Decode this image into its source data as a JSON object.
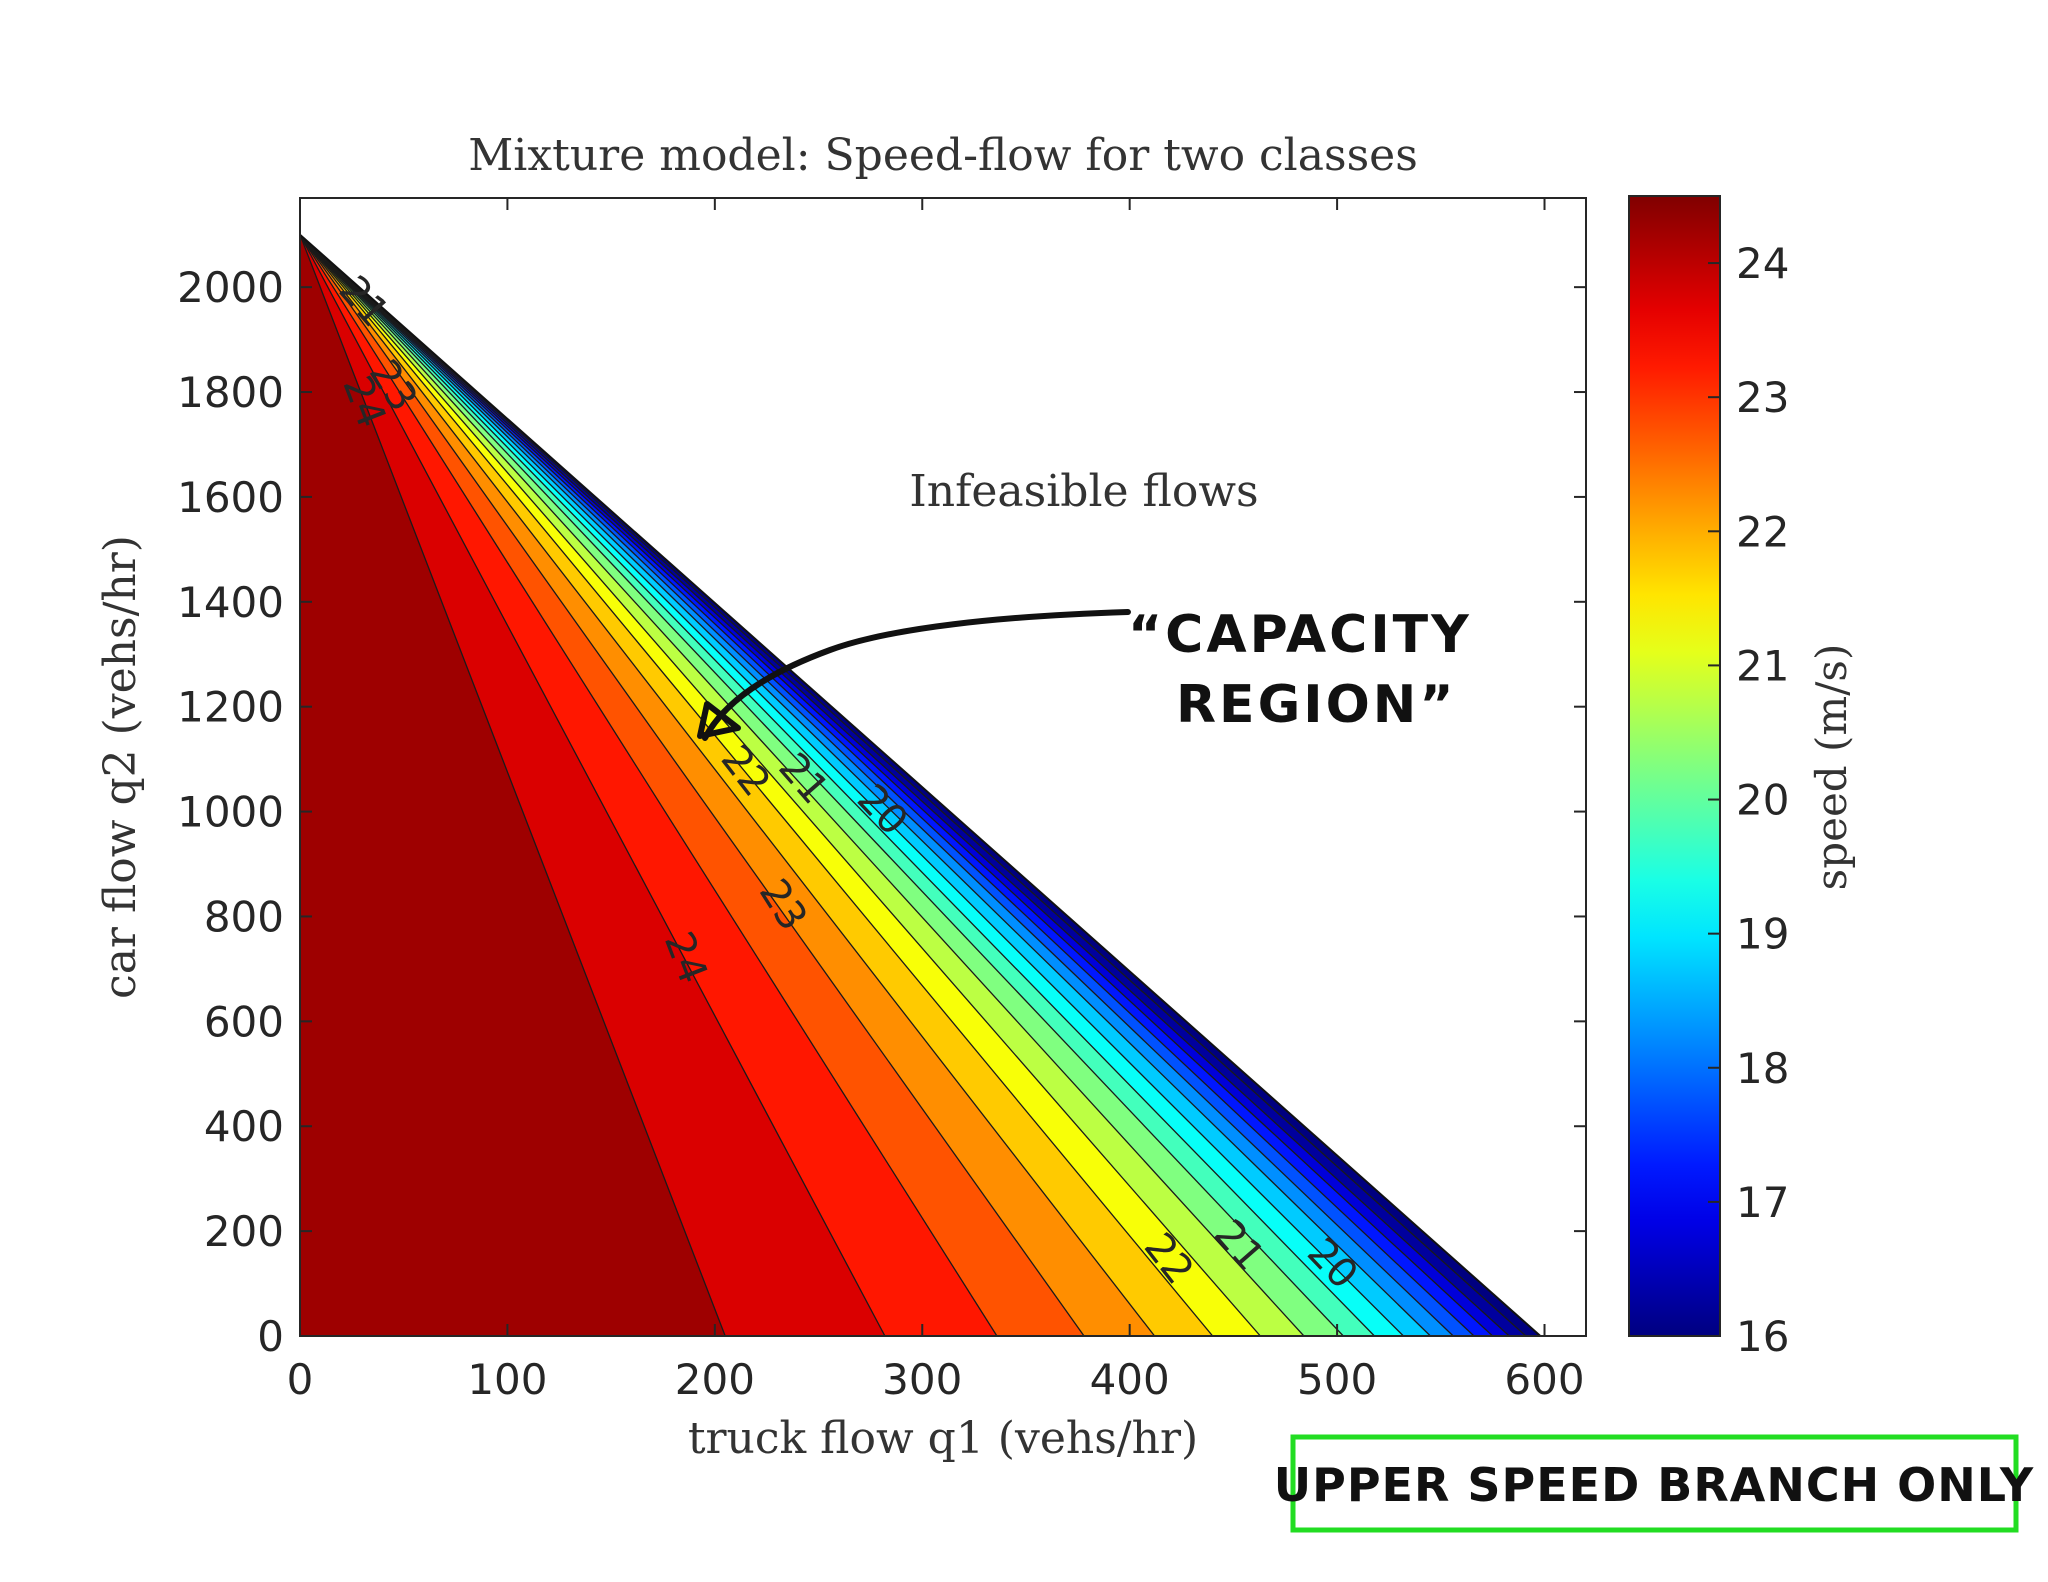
{
  "chart_data": {
    "type": "contour",
    "title": "Mixture model: Speed-flow for two classes",
    "xlabel": "truck flow q1 (vehs/hr)",
    "ylabel": "car flow q2 (vehs/hr)",
    "xlim": [
      0,
      620
    ],
    "ylim": [
      0,
      2170
    ],
    "xticks": [
      0,
      100,
      200,
      300,
      400,
      500,
      600
    ],
    "yticks": [
      0,
      200,
      400,
      600,
      800,
      1000,
      1200,
      1400,
      1600,
      1800,
      2000
    ],
    "colorbar": {
      "label": "speed (m/s)",
      "range": [
        16,
        24.5
      ],
      "ticks": [
        16,
        17,
        18,
        19,
        20,
        21,
        22,
        23,
        24
      ],
      "colormap": "jet"
    },
    "feasible_boundary": {
      "q1_intercept": 598,
      "q2_intercept": 2100
    },
    "contour_levels": [
      {
        "speed": 24.5,
        "q1_intercept": 0
      },
      {
        "speed": 24,
        "q1_intercept": 205
      },
      {
        "speed": 23.5,
        "q1_intercept": 282
      },
      {
        "speed": 23,
        "q1_intercept": 336
      },
      {
        "speed": 22.5,
        "q1_intercept": 378
      },
      {
        "speed": 22,
        "q1_intercept": 412
      },
      {
        "speed": 21.5,
        "q1_intercept": 440
      },
      {
        "speed": 21,
        "q1_intercept": 463
      },
      {
        "speed": 20.5,
        "q1_intercept": 484
      },
      {
        "speed": 20,
        "q1_intercept": 503
      },
      {
        "speed": 19.5,
        "q1_intercept": 518
      },
      {
        "speed": 19,
        "q1_intercept": 532
      },
      {
        "speed": 18.5,
        "q1_intercept": 545
      },
      {
        "speed": 18,
        "q1_intercept": 556
      },
      {
        "speed": 17.5,
        "q1_intercept": 566
      },
      {
        "speed": 17,
        "q1_intercept": 575
      },
      {
        "speed": 16.5,
        "q1_intercept": 583
      },
      {
        "speed": 16,
        "q1_intercept": 591
      }
    ],
    "contour_labels": [
      {
        "text": "24",
        "q1": 185,
        "q2": 720,
        "speed": 24
      },
      {
        "text": "23",
        "q1": 232,
        "q2": 820,
        "speed": 23
      },
      {
        "text": "22",
        "q1": 214,
        "q2": 1075,
        "speed": 22
      },
      {
        "text": "21",
        "q1": 242,
        "q2": 1060,
        "speed": 21
      },
      {
        "text": "20",
        "q1": 280,
        "q2": 1000,
        "speed": 20
      },
      {
        "text": "22",
        "q1": 418,
        "q2": 145,
        "speed": 22
      },
      {
        "text": "21",
        "q1": 452,
        "q2": 170,
        "speed": 21
      },
      {
        "text": "20",
        "q1": 497,
        "q2": 135,
        "speed": 20
      },
      {
        "text": "24",
        "q1": 30,
        "q2": 1780,
        "speed": 24
      },
      {
        "text": "23",
        "q1": 44,
        "q2": 1810,
        "speed": 23
      },
      {
        "text": "21",
        "q1": 30,
        "q2": 1970,
        "speed": 21
      }
    ],
    "annotations": [
      {
        "text": "Infeasible flows"
      }
    ]
  },
  "handwritten": {
    "capacity_line1": "“CAPACITY",
    "capacity_line2": "REGION”",
    "box_text": "UPPER SPEED BRANCH ONLY",
    "box_color": "#22dd22"
  }
}
